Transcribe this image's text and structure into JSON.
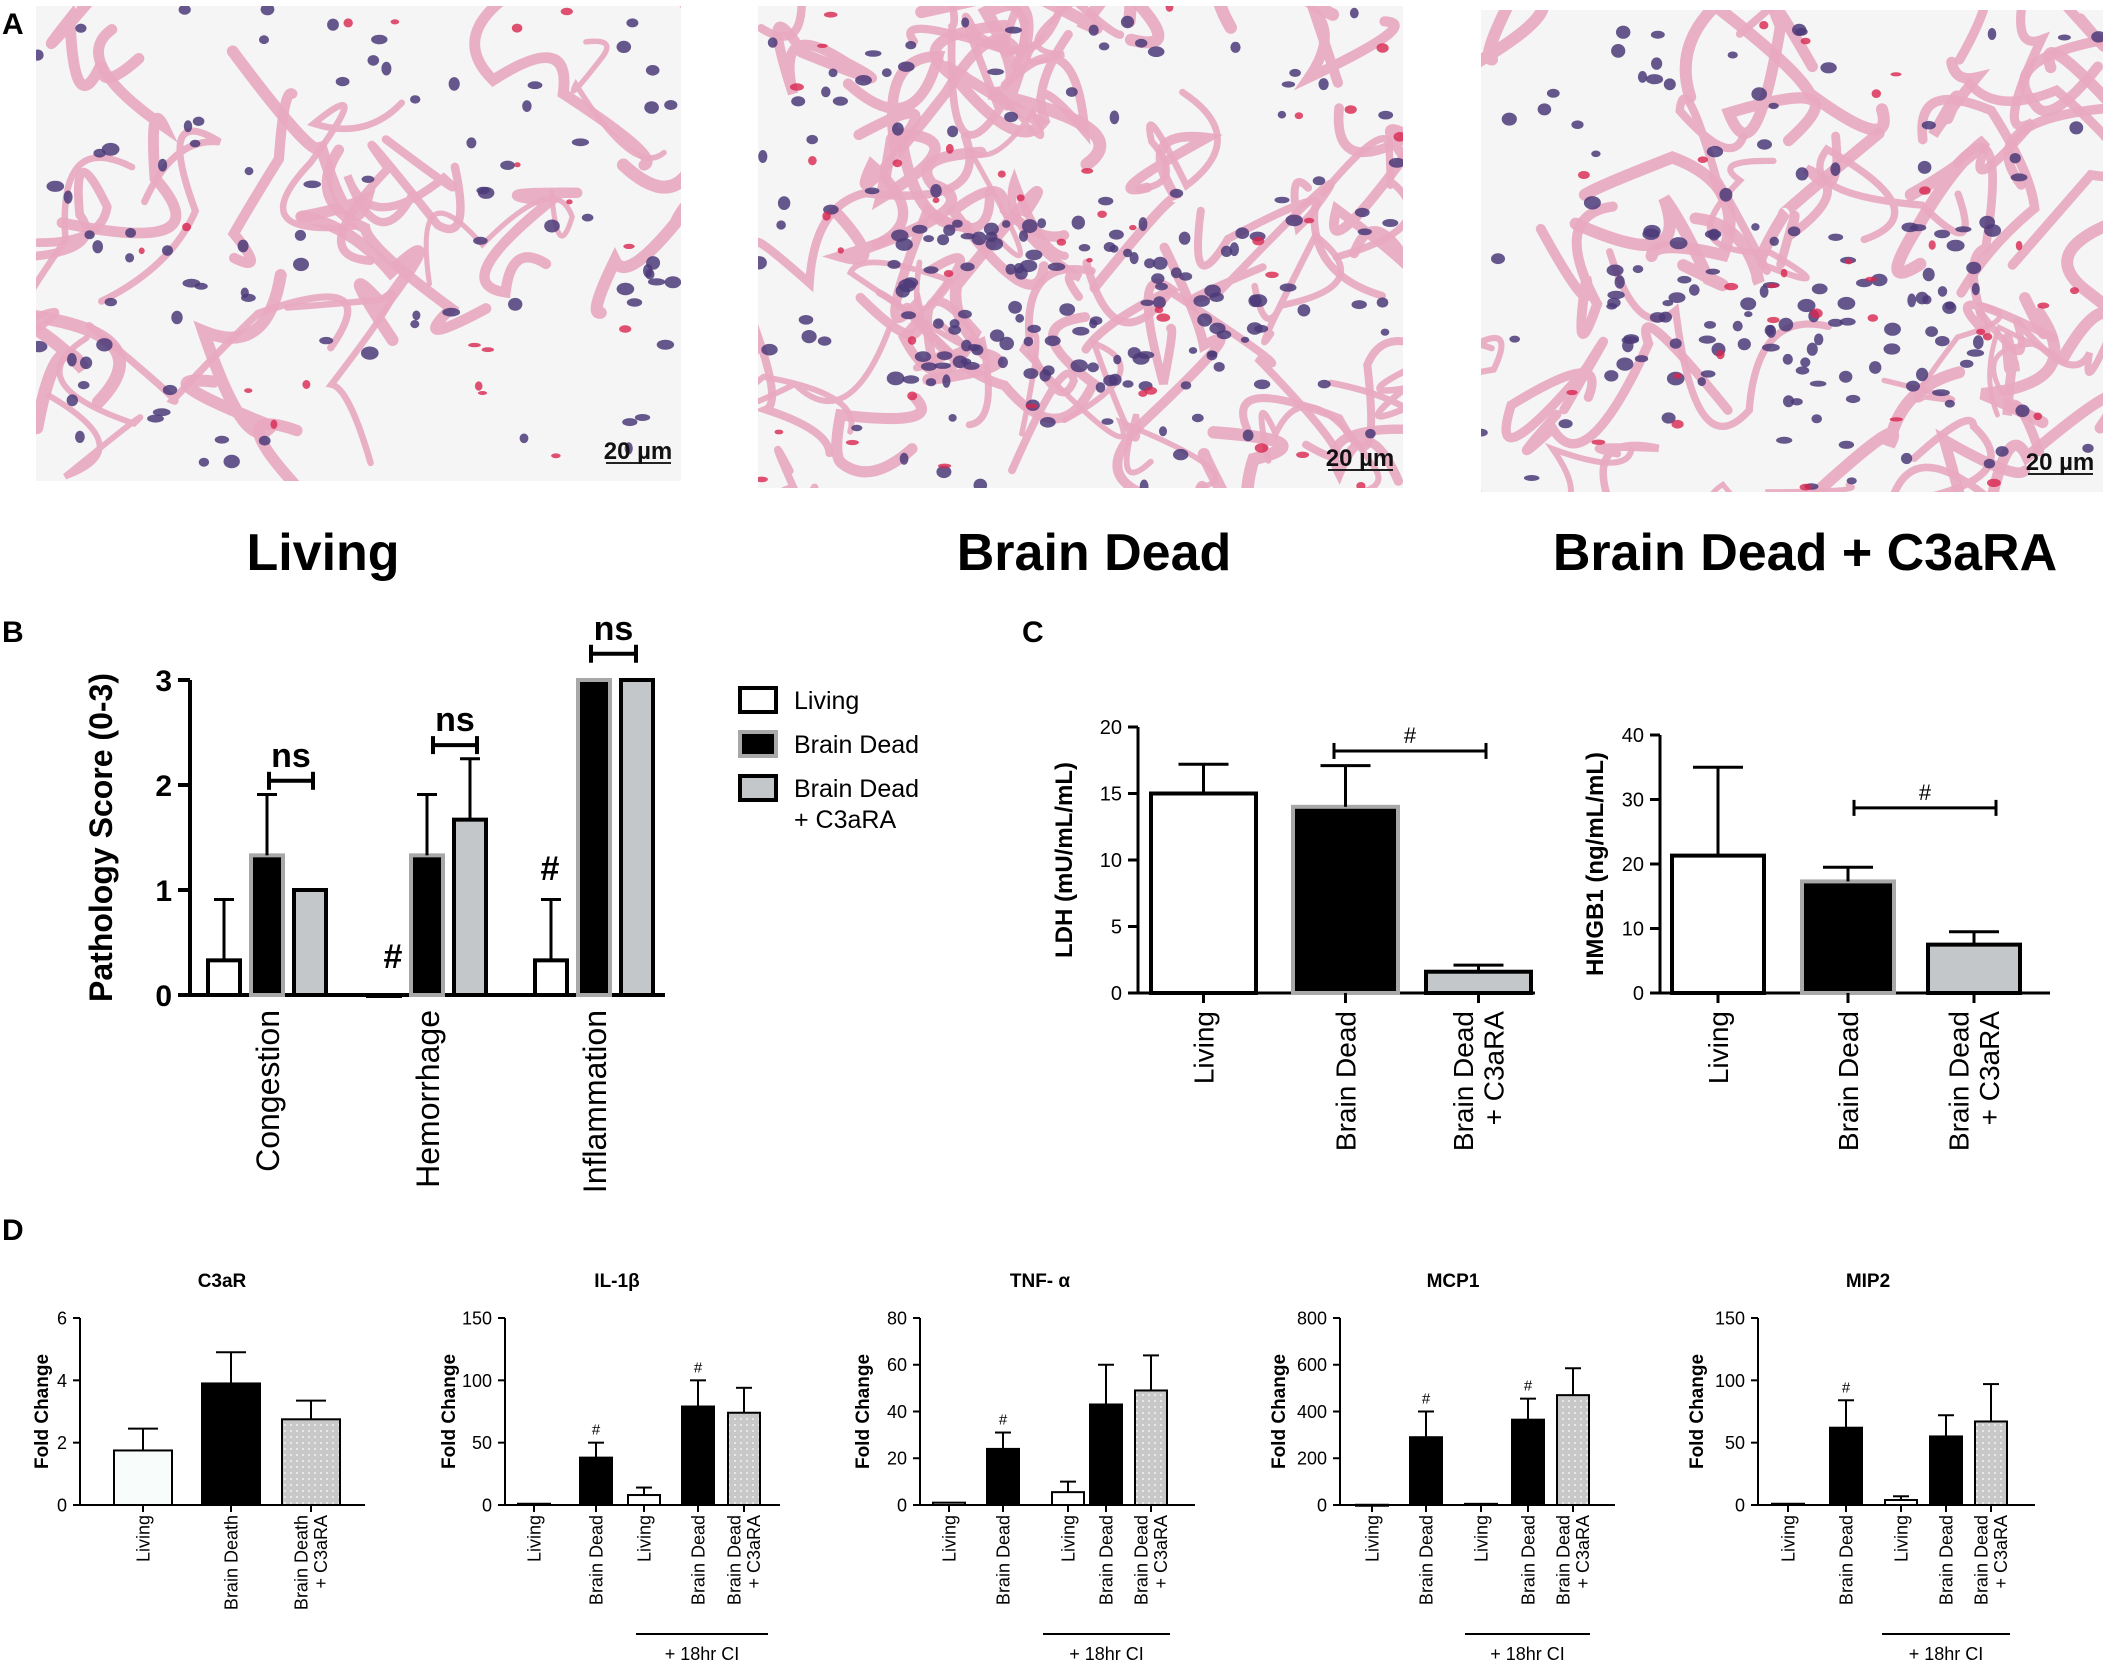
{
  "panel_letters": {
    "a": "A",
    "b": "B",
    "c": "C",
    "d": "D"
  },
  "micrographs": [
    {
      "label": "Living",
      "scale_bar": "20 µm"
    },
    {
      "label": "Brain Dead",
      "scale_bar": "20 µm"
    },
    {
      "label": "Brain Dead + C3aRA",
      "scale_bar": "20 µm"
    }
  ],
  "colors": {
    "living": "#ffffff",
    "brain_dead": "#000000",
    "c3ara": "#c4c7c9",
    "tissue_pink": "#e8a9c0",
    "nuclei": "#4b3a78",
    "rbc": "#d8264f"
  },
  "chart_data": [
    {
      "id": "B",
      "type": "bar",
      "ylabel": "Pathology Score (0-3)",
      "ylim": [
        0,
        3
      ],
      "yticks": [
        "0",
        "1",
        "2",
        "3"
      ],
      "categories": [
        "Congestion",
        "Hemorrhage",
        "Inflammation"
      ],
      "series": [
        {
          "name": "Living",
          "values": [
            0.33,
            0,
            0.33
          ],
          "errors": [
            0.58,
            0,
            0.58
          ]
        },
        {
          "name": "Brain Dead",
          "values": [
            1.33,
            1.33,
            3
          ],
          "errors": [
            0.58,
            0.58,
            0
          ]
        },
        {
          "name": "Brain Dead\n+ C3aRA",
          "values": [
            1,
            1.67,
            3
          ],
          "errors": [
            0,
            0.58,
            0
          ]
        }
      ],
      "legend_position": "right",
      "annotations": [
        "ns",
        "ns",
        "ns",
        "#",
        "#"
      ]
    },
    {
      "id": "C1",
      "type": "bar",
      "ylabel": "LDH (mU/mL/mL)",
      "ylim": [
        0,
        20
      ],
      "yticks": [
        "0",
        "5",
        "10",
        "15",
        "20"
      ],
      "categories": [
        "Living",
        "Brain Dead",
        "Brain Dead\n+ C3aRA"
      ],
      "values": [
        15,
        14,
        1.6
      ],
      "errors": [
        2.2,
        3.1,
        0.5
      ],
      "annotations": [
        "#"
      ]
    },
    {
      "id": "C2",
      "type": "bar",
      "ylabel": "HMGB1 (ng/mL/mL)",
      "ylim": [
        0,
        40
      ],
      "yticks": [
        "0",
        "10",
        "20",
        "30",
        "40"
      ],
      "categories": [
        "Living",
        "Brain Dead",
        "Brain Dead\n+ C3aRA"
      ],
      "values": [
        21.3,
        17.3,
        7.5
      ],
      "errors": [
        13.7,
        2.2,
        2
      ],
      "annotations": [
        "#"
      ]
    },
    {
      "id": "D1",
      "type": "bar",
      "title": "C3aR",
      "ylabel": "Fold Change",
      "ylim": [
        0,
        6
      ],
      "yticks": [
        "0",
        "2",
        "4",
        "6"
      ],
      "categories": [
        "Living",
        "Brain Death",
        "Brain Death\n+ C3aRA"
      ],
      "values": [
        1.75,
        3.9,
        2.75
      ],
      "errors": [
        0.7,
        1.0,
        0.6
      ]
    },
    {
      "id": "D2",
      "type": "bar",
      "title": "IL-1β",
      "ylabel": "Fold Change",
      "ylim": [
        0,
        150
      ],
      "yticks": [
        "0",
        "50",
        "100",
        "150"
      ],
      "categories": [
        "Living",
        "Brain Dead",
        "Living",
        "Brain Dead",
        "Brain Dead\n+ C3aRA"
      ],
      "values": [
        1,
        38,
        8,
        79,
        74
      ],
      "errors": [
        0,
        12,
        6,
        21,
        20
      ],
      "annotations": [
        "#",
        "#"
      ],
      "group_label": "+ 18hr CI"
    },
    {
      "id": "D3",
      "type": "bar",
      "title": "TNF- α",
      "ylabel": "Fold Change",
      "ylim": [
        0,
        80
      ],
      "yticks": [
        "0",
        "20",
        "40",
        "60",
        "80"
      ],
      "categories": [
        "Living",
        "Brain Dead",
        "Living",
        "Brain Dead",
        "Brain Dead\n+ C3aRA"
      ],
      "values": [
        1,
        24,
        5.5,
        43,
        49
      ],
      "errors": [
        0,
        7,
        4.5,
        17,
        15
      ],
      "annotations": [
        "#"
      ],
      "group_label": "+ 18hr CI"
    },
    {
      "id": "D4",
      "type": "bar",
      "title": "MCP1",
      "ylabel": "Fold Change",
      "ylim": [
        0,
        800
      ],
      "yticks": [
        "0",
        "200",
        "400",
        "600",
        "800"
      ],
      "categories": [
        "Living",
        "Brain Dead",
        "Living",
        "Brain Dead",
        "Brain Dead\n+ C3aRA"
      ],
      "values": [
        1,
        290,
        5,
        365,
        470
      ],
      "errors": [
        0,
        110,
        0,
        90,
        115
      ],
      "annotations": [
        "#",
        "#"
      ],
      "group_label": "+ 18hr CI"
    },
    {
      "id": "D5",
      "type": "bar",
      "title": "MIP2",
      "ylabel": "Fold Change",
      "ylim": [
        0,
        150
      ],
      "yticks": [
        "0",
        "50",
        "100",
        "150"
      ],
      "categories": [
        "Living",
        "Brain Dead",
        "Living",
        "Brain Dead",
        "Brain Dead\n+ C3aRA"
      ],
      "values": [
        1,
        62,
        4,
        55,
        67
      ],
      "errors": [
        0,
        22,
        3,
        17,
        30
      ],
      "annotations": [
        "#"
      ],
      "group_label": "+ 18hr CI"
    }
  ]
}
